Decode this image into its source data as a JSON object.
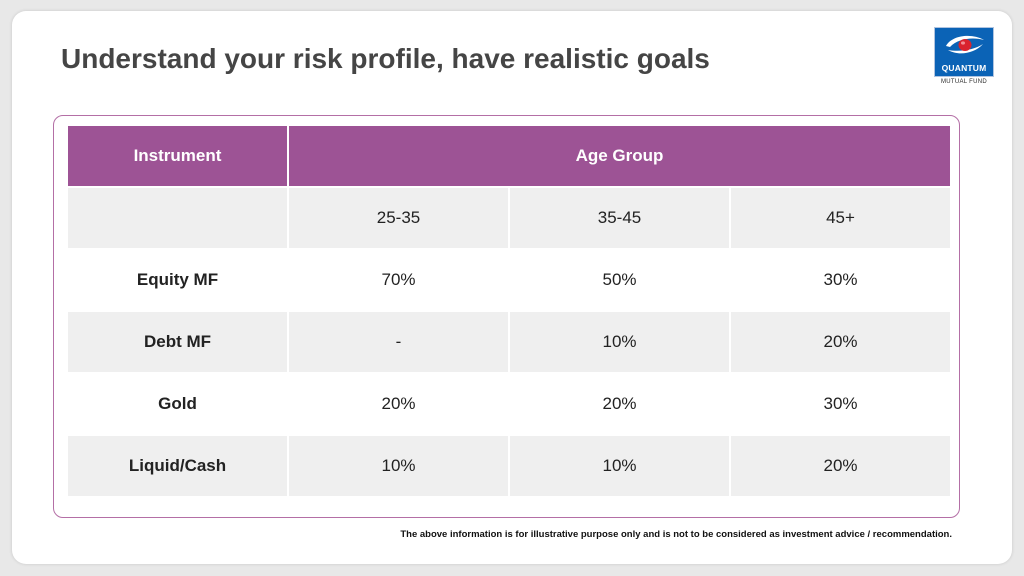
{
  "slide": {
    "title": "Understand your risk profile, have realistic goals",
    "disclaimer": "The above information is for illustrative purpose only and is not to be considered as investment advice / recommendation."
  },
  "logo": {
    "name": "QUANTUM",
    "subtitle": "MUTUAL FUND",
    "brand_color": "#0b63b6",
    "emblem_accent": "#d9232e"
  },
  "table": {
    "header_color": "#9d5395",
    "border_color": "#b46fa6",
    "headers": {
      "instrument": "Instrument",
      "age_group": "Age  Group"
    },
    "age_bands": [
      "25-35",
      "35-45",
      "45+"
    ],
    "rows": [
      {
        "instrument": "Equity MF",
        "values": [
          "70%",
          "50%",
          "30%"
        ]
      },
      {
        "instrument": "Debt MF",
        "values": [
          "-",
          "10%",
          "20%"
        ]
      },
      {
        "instrument": "Gold",
        "values": [
          "20%",
          "20%",
          "30%"
        ]
      },
      {
        "instrument": "Liquid/Cash",
        "values": [
          "10%",
          "10%",
          "20%"
        ]
      }
    ]
  }
}
